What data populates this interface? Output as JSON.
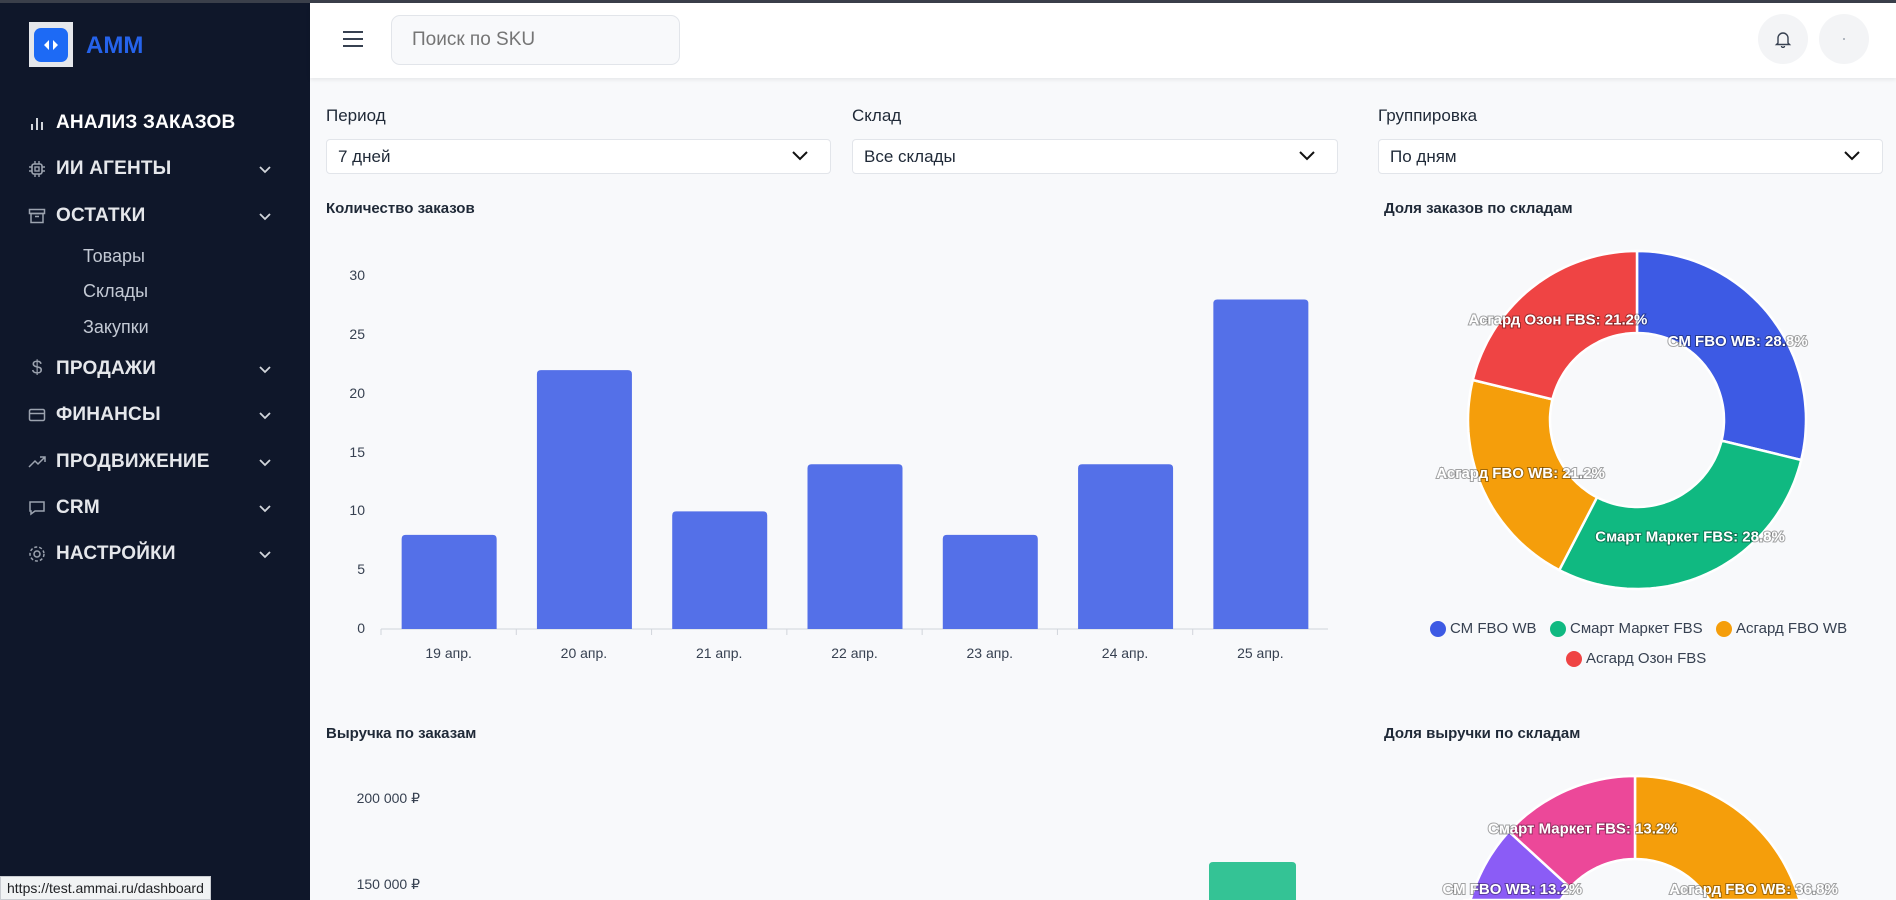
{
  "app": {
    "name": "АММ",
    "status_url": "https://test.ammai.ru/dashboard"
  },
  "sidebar": {
    "items": [
      {
        "label": "АНАЛИЗ ЗАКАЗОВ",
        "icon": "bar-chart-icon"
      },
      {
        "label": "ИИ АГЕНТЫ",
        "icon": "chip-icon"
      },
      {
        "label": "ОСТАТКИ",
        "icon": "archive-icon",
        "children": [
          "Товары",
          "Склады",
          "Закупки"
        ]
      },
      {
        "label": "ПРОДАЖИ",
        "icon": "dollar-icon"
      },
      {
        "label": "ФИНАНСЫ",
        "icon": "credit-card-icon"
      },
      {
        "label": "ПРОДВИЖЕНИЕ",
        "icon": "trending-up-icon"
      },
      {
        "label": "CRM",
        "icon": "message-icon"
      },
      {
        "label": "НАСТРОЙКИ",
        "icon": "gear-icon"
      }
    ]
  },
  "header": {
    "search_placeholder": "Поиск по SKU"
  },
  "filters": {
    "period": {
      "label": "Период",
      "value": "7 дней"
    },
    "warehouse": {
      "label": "Склад",
      "value": "Все склады"
    },
    "grouping": {
      "label": "Группировка",
      "value": "По дням"
    }
  },
  "colors": {
    "bar": "#5470e8",
    "revenue_bar": "#34c395",
    "accent": "#2563eb"
  },
  "chart_data": [
    {
      "type": "bar",
      "title": "Количество заказов",
      "categories": [
        "19 апр.",
        "20 апр.",
        "21 апр.",
        "22 апр.",
        "23 апр.",
        "24 апр.",
        "25 апр."
      ],
      "values": [
        8,
        22,
        10,
        14,
        8,
        14,
        28
      ],
      "yticks": [
        "0",
        "5",
        "10",
        "15",
        "20",
        "25",
        "30"
      ],
      "ylim": [
        0,
        30
      ],
      "grid": false
    },
    {
      "type": "pie",
      "title": "Доля заказов по складам",
      "slices": [
        {
          "name": "СМ FBO WB",
          "value": 28.8,
          "label": "СМ FBO WB: 28.8%",
          "color": "#3d5ae4"
        },
        {
          "name": "Смарт Маркет FBS",
          "value": 28.8,
          "label": "Смарт Маркет FBS: 28.8%",
          "color": "#10b981"
        },
        {
          "name": "Асгард FBO WB",
          "value": 21.2,
          "label": "Асгард FBO WB: 21.2%",
          "color": "#f59e0b"
        },
        {
          "name": "Асгард Озон FBS",
          "value": 21.2,
          "label": "Асгард Озон FBS: 21.2%",
          "color": "#ef4444"
        }
      ],
      "legend": "bottom"
    },
    {
      "type": "bar",
      "title": "Выручка по заказам",
      "yticks": [
        "200 000 ₽",
        "150 000 ₽"
      ]
    },
    {
      "type": "pie",
      "title": "Доля выручки по складам",
      "slices": [
        {
          "value": 36.8,
          "label": "Асгард FBO WB: 36.8%",
          "color": "#f59e0b"
        },
        {
          "value": 13.2,
          "label": "СМ FBO WB: 13.2%",
          "color": "#8b5cf6"
        },
        {
          "value": 13.2,
          "label": "Смарт Маркет FBS: 13.2%",
          "color": "#ec4899"
        }
      ]
    }
  ]
}
